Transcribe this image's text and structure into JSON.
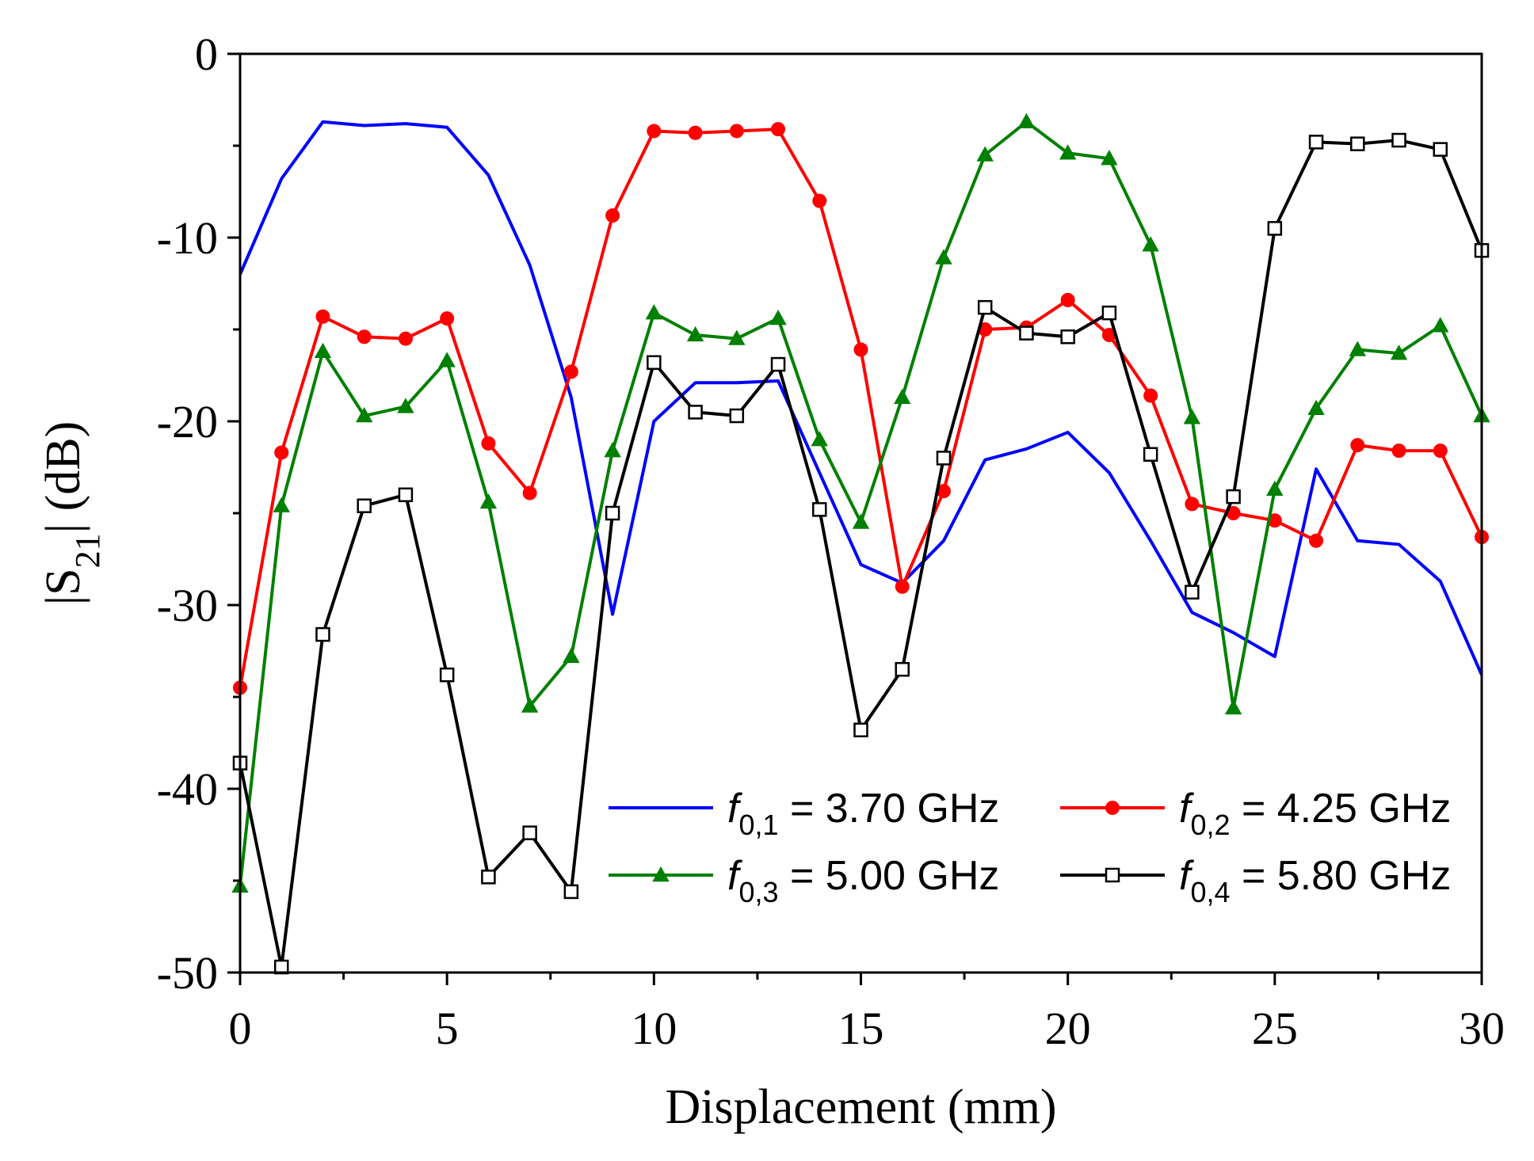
{
  "chart_data": {
    "type": "line",
    "title": "",
    "xlabel": "Displacement (mm)",
    "ylabel_parts": {
      "pre": "|S",
      "sub": "21",
      "post": "| (dB)"
    },
    "xlim": [
      0,
      30
    ],
    "ylim": [
      -50,
      0
    ],
    "xticks": [
      0,
      5,
      10,
      15,
      20,
      25,
      30
    ],
    "yticks": [
      0,
      -10,
      -20,
      -30,
      -40,
      -50
    ],
    "grid": false,
    "legend_position": "lower-right",
    "x": [
      0,
      1,
      2,
      3,
      4,
      5,
      6,
      7,
      8,
      9,
      10,
      11,
      12,
      13,
      14,
      15,
      16,
      17,
      18,
      19,
      20,
      21,
      22,
      23,
      24,
      25,
      26,
      27,
      28,
      29,
      30
    ],
    "series": [
      {
        "name": "f0,1 = 3.70 GHz",
        "legend": {
          "sym": "f",
          "sub": "0,1",
          "rest": " = 3.70 GHz"
        },
        "color": "#0000ff",
        "marker": "none",
        "values": [
          -12,
          -6.8,
          -3.7,
          -3.9,
          -3.8,
          -4.0,
          -6.6,
          -11.5,
          -18.7,
          -30.5,
          -20.0,
          -17.9,
          -17.9,
          -17.8,
          -22.8,
          -27.8,
          -28.8,
          -26.5,
          -22.1,
          -21.5,
          -20.6,
          -22.8,
          -26.5,
          -30.4,
          -31.5,
          -32.8,
          -22.6,
          -26.5,
          -26.7,
          -28.7,
          -33.8
        ]
      },
      {
        "name": "f0,2 = 4.25 GHz",
        "legend": {
          "sym": "f",
          "sub": "0,2",
          "rest": " = 4.25 GHz"
        },
        "color": "#ff0000",
        "marker": "circle",
        "values": [
          -34.5,
          -21.7,
          -14.3,
          -15.4,
          -15.5,
          -14.4,
          -21.2,
          -23.9,
          -17.3,
          -8.8,
          -4.2,
          -4.3,
          -4.2,
          -4.1,
          -8.0,
          -16.1,
          -29.0,
          -23.8,
          -15.0,
          -14.9,
          -13.4,
          -15.3,
          -18.6,
          -24.5,
          -25.0,
          -25.4,
          -26.5,
          -21.3,
          -21.6,
          -21.6,
          -26.3
        ]
      },
      {
        "name": "f0,3 = 5.00 GHz",
        "legend": {
          "sym": "f",
          "sub": "0,3",
          "rest": " = 5.00 GHz"
        },
        "color": "#008000",
        "marker": "triangle",
        "values": [
          -45.3,
          -24.6,
          -16.2,
          -19.7,
          -19.2,
          -16.7,
          -24.4,
          -35.5,
          -32.8,
          -21.6,
          -14.1,
          -15.3,
          -15.5,
          -14.4,
          -21.0,
          -25.5,
          -18.7,
          -11.1,
          -5.5,
          -3.7,
          -5.4,
          -5.7,
          -10.4,
          -19.8,
          -35.6,
          -23.7,
          -19.3,
          -16.1,
          -16.3,
          -14.8,
          -19.7
        ]
      },
      {
        "name": "f0,4 = 5.80 GHz",
        "legend": {
          "sym": "f",
          "sub": "0,4",
          "rest": " = 5.80 GHz"
        },
        "color": "#000000",
        "marker": "square",
        "values": [
          -38.6,
          -49.7,
          -31.6,
          -24.6,
          -24.0,
          -33.8,
          -44.8,
          -42.4,
          -45.6,
          -25.0,
          -16.8,
          -19.5,
          -19.7,
          -16.9,
          -24.8,
          -36.8,
          -33.5,
          -22.0,
          -13.8,
          -15.2,
          -15.4,
          -14.1,
          -21.8,
          -29.3,
          -24.1,
          -9.5,
          -4.8,
          -4.9,
          -4.7,
          -5.2,
          -10.7
        ]
      }
    ]
  }
}
